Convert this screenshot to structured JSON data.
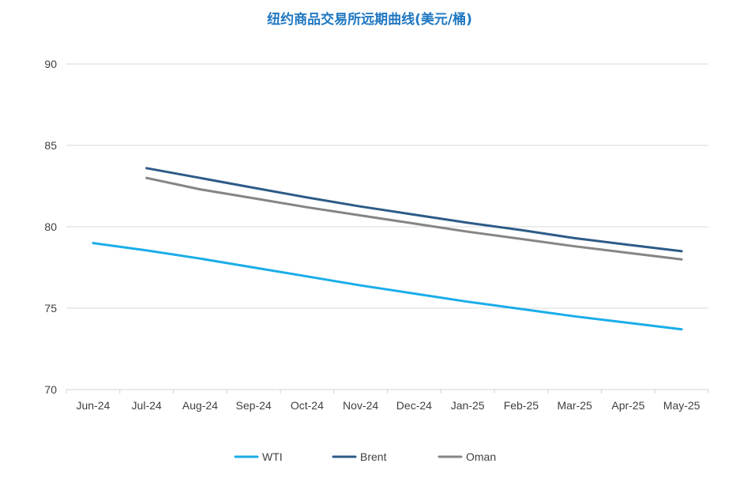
{
  "chart_data": {
    "type": "line",
    "title": "纽约商品交易所远期曲线(美元/桶)",
    "title_color": "#1F77C1",
    "xlabel": "",
    "ylabel": "",
    "categories": [
      "Jun-24",
      "Jul-24",
      "Aug-24",
      "Sep-24",
      "Oct-24",
      "Nov-24",
      "Dec-24",
      "Jan-25",
      "Feb-25",
      "Mar-25",
      "Apr-25",
      "May-25"
    ],
    "ylim": [
      70,
      90
    ],
    "yticks": [
      70,
      75,
      80,
      85,
      90
    ],
    "grid": true,
    "legend_position": "bottom",
    "series": [
      {
        "name": "WTI",
        "color": "#1AADE8",
        "values": [
          79.0,
          78.55,
          78.05,
          77.5,
          76.95,
          76.4,
          75.9,
          75.4,
          74.95,
          74.5,
          74.1,
          73.7
        ]
      },
      {
        "name": "Brent",
        "color": "#2E5B87",
        "values": [
          null,
          83.6,
          83.0,
          82.4,
          81.8,
          81.25,
          80.75,
          80.25,
          79.8,
          79.3,
          78.9,
          78.5
        ]
      },
      {
        "name": "Oman",
        "color": "#858585",
        "values": [
          null,
          83.0,
          82.3,
          81.75,
          81.2,
          80.7,
          80.2,
          79.7,
          79.25,
          78.8,
          78.4,
          78.0
        ]
      }
    ]
  }
}
